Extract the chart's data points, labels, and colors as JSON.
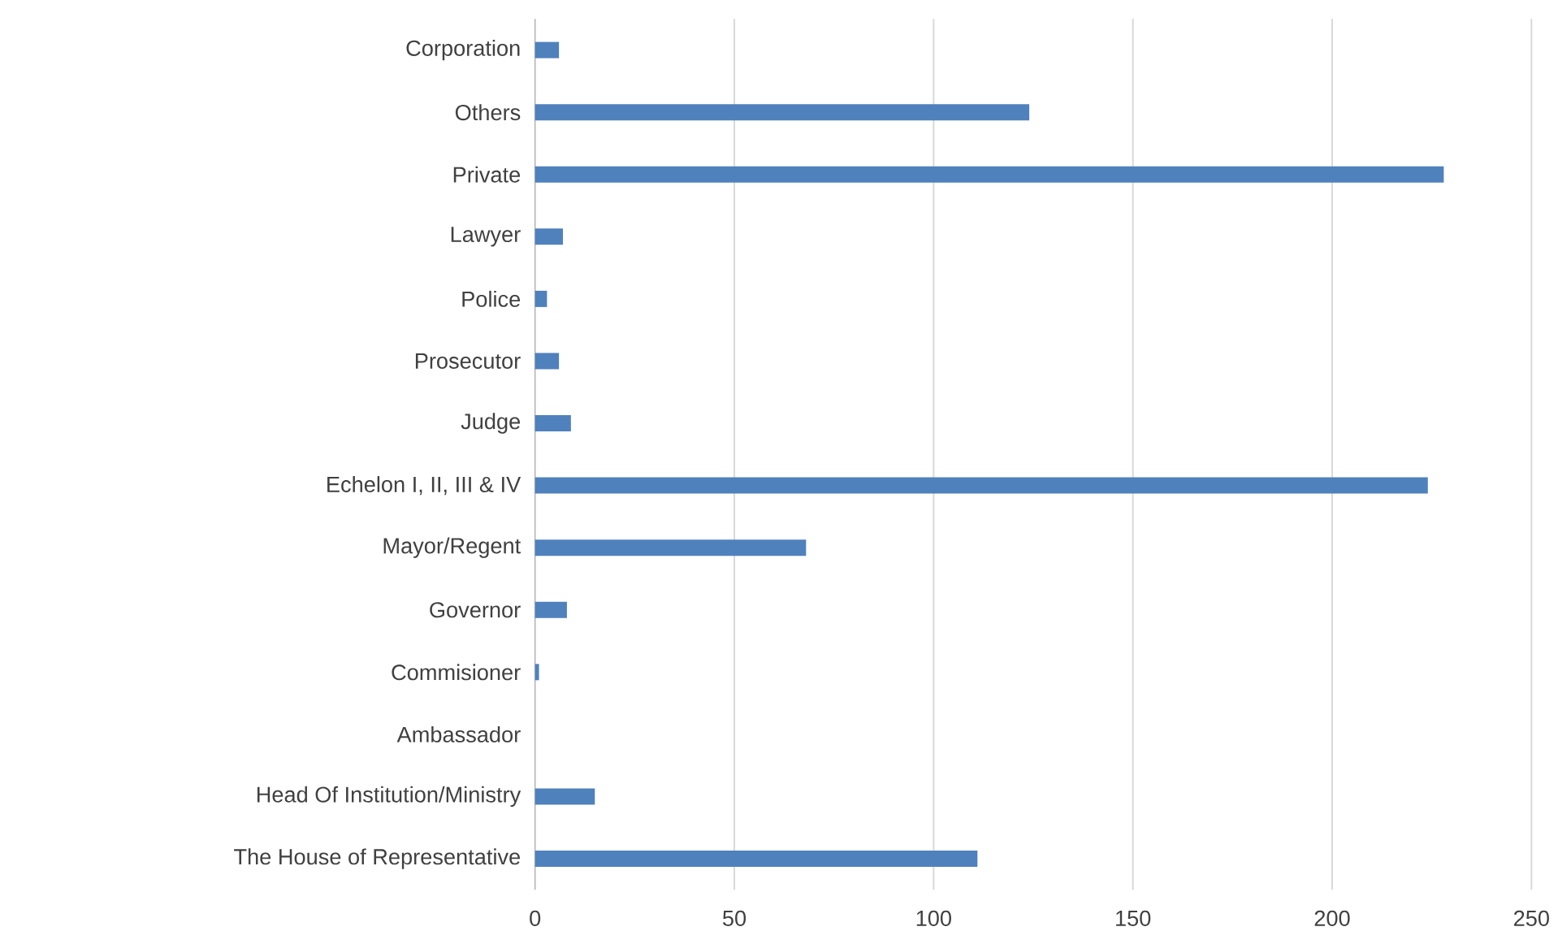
{
  "chart_data": {
    "type": "bar",
    "orientation": "horizontal",
    "categories": [
      "Corporation",
      "Others",
      "Private",
      "Lawyer",
      "Police",
      "Prosecutor",
      "Judge",
      "Echelon I, II, III & IV",
      "Mayor/Regent",
      "Governor",
      "Commisioner",
      "Ambassador",
      "Head Of Institution/Ministry",
      "The House of Representative"
    ],
    "values": [
      6,
      124,
      228,
      7,
      3,
      6,
      9,
      224,
      68,
      8,
      1,
      0,
      15,
      111
    ],
    "color": "#4f81bd",
    "xlim": [
      0,
      250
    ],
    "xticks": [
      0,
      50,
      100,
      150,
      200,
      250
    ],
    "grid": "x"
  }
}
